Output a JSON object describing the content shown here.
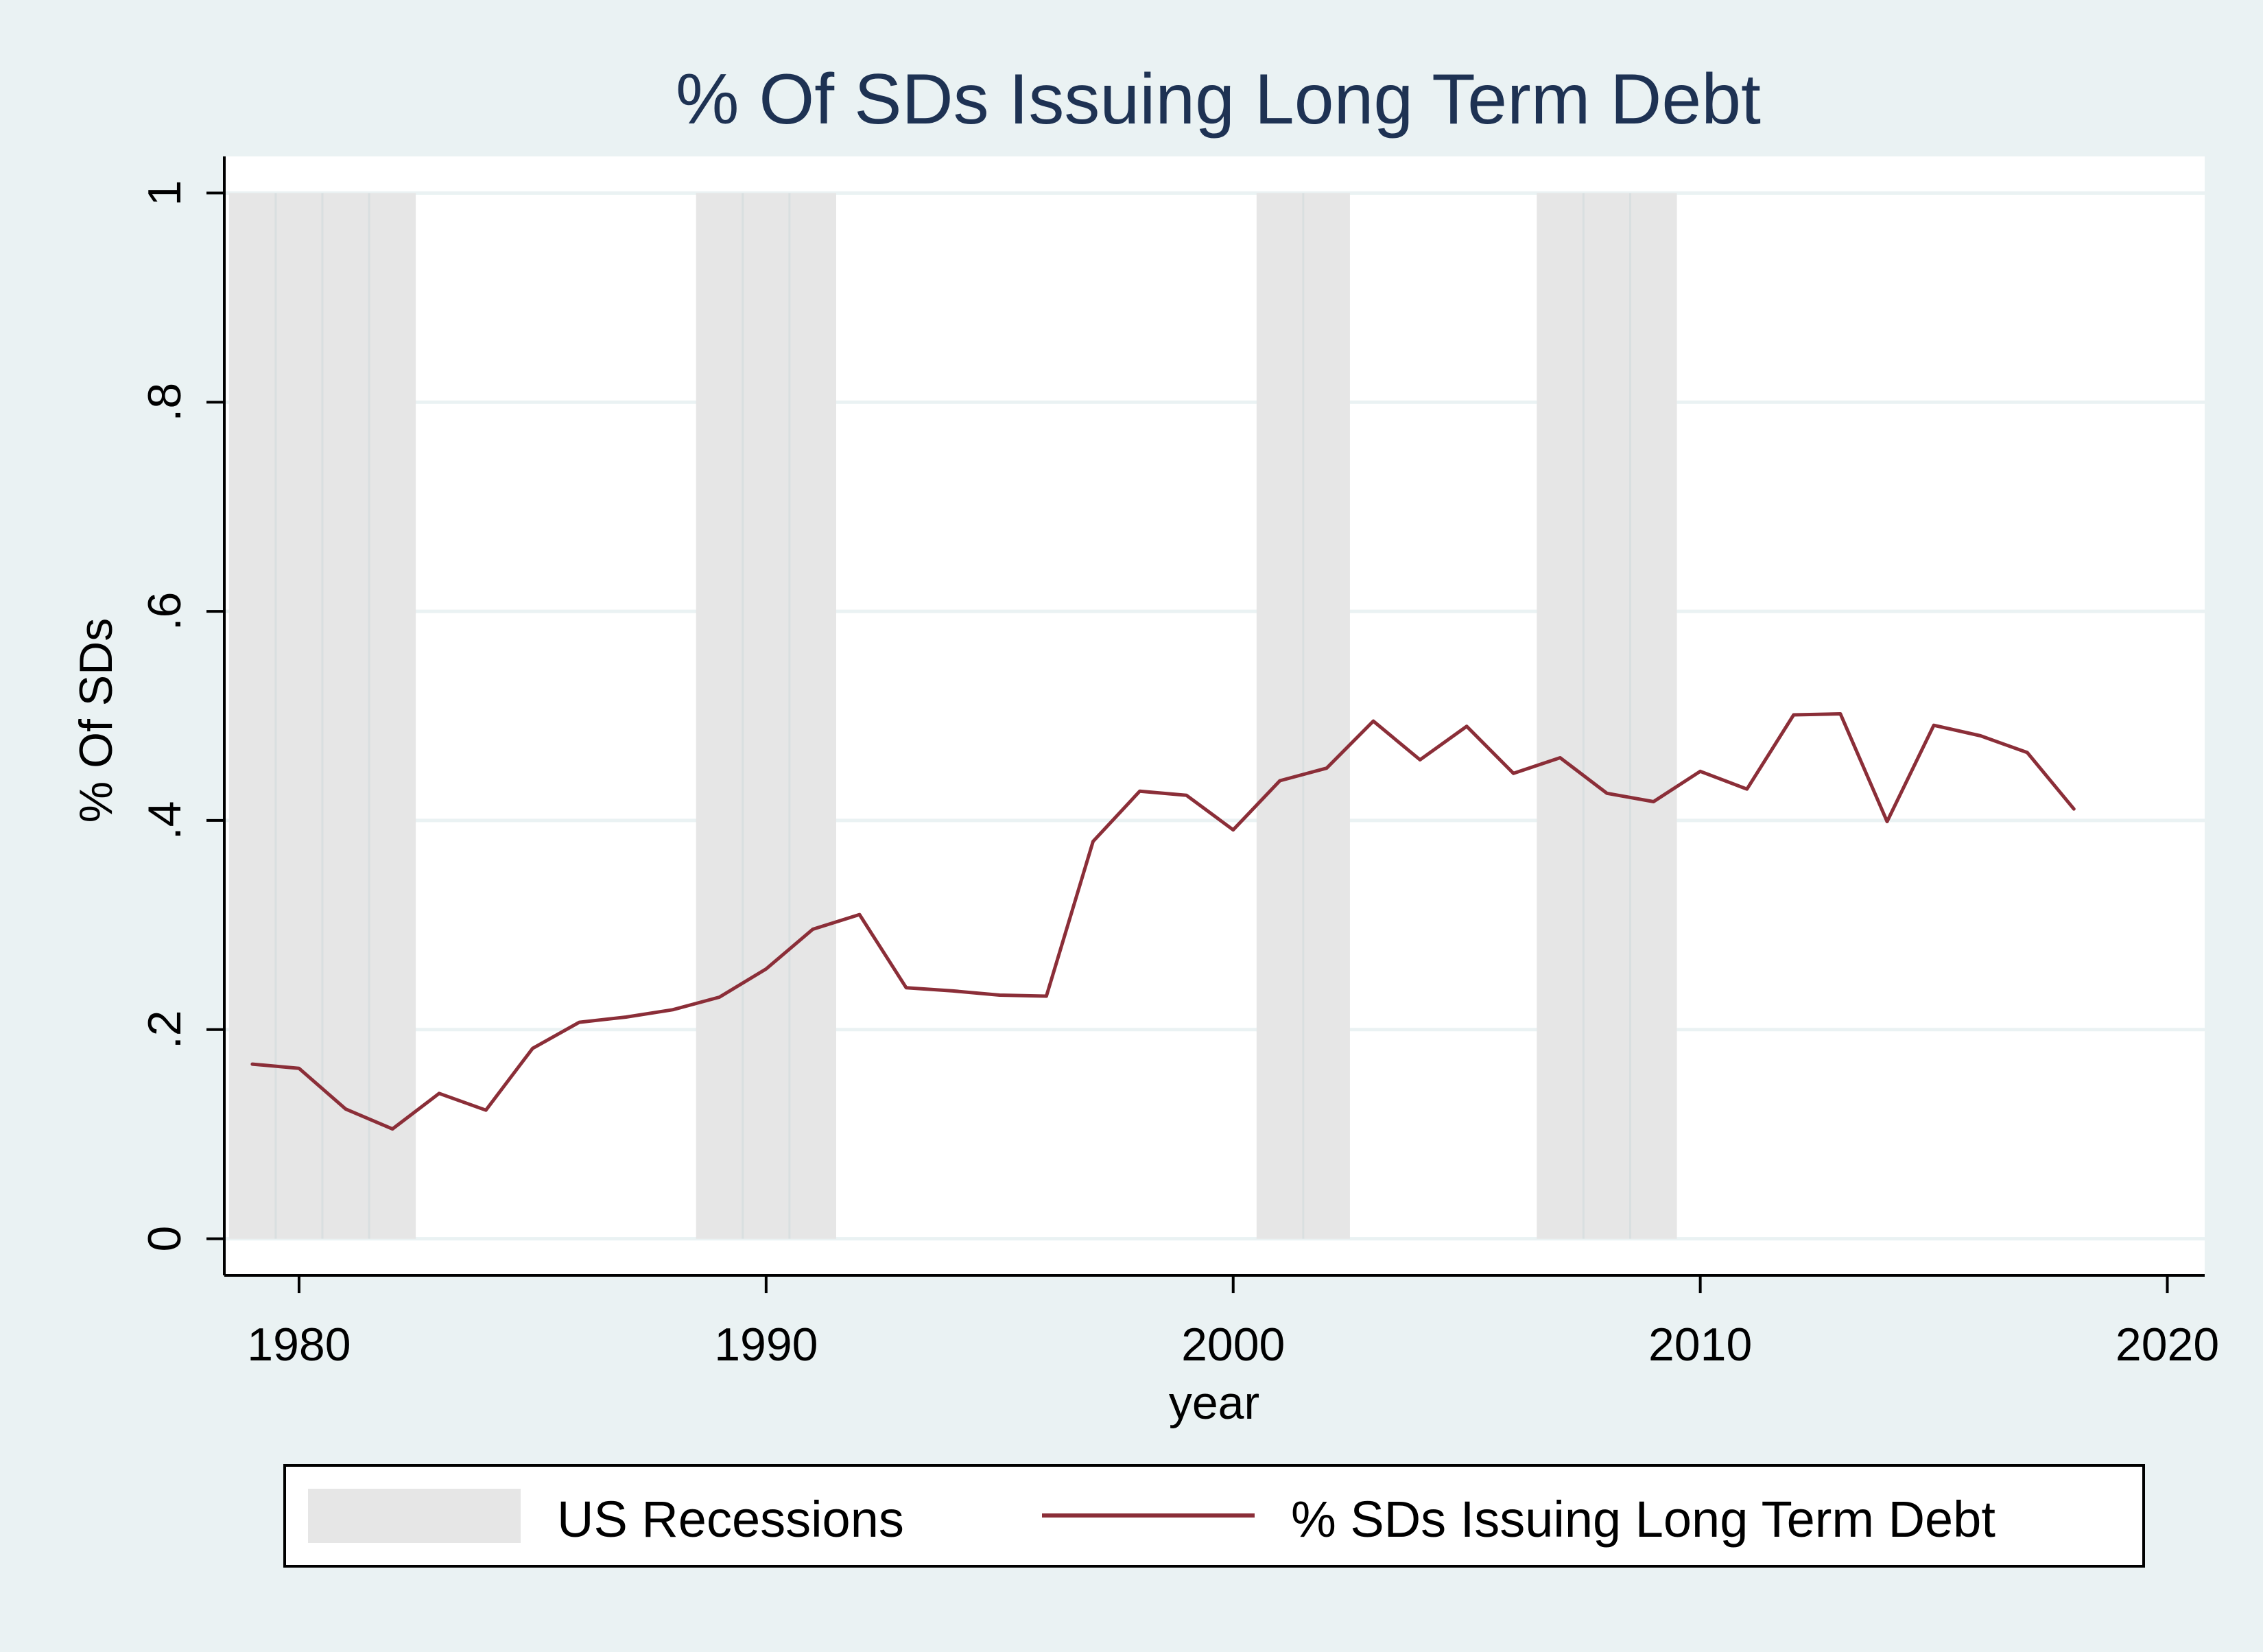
{
  "chart_data": {
    "type": "line",
    "title": "% Of SDs Issuing Long Term Debt",
    "xlabel": "year",
    "ylabel": "% Of SDs",
    "xlim": [
      1978.4,
      2020.8
    ],
    "ylim": [
      -0.035,
      1.035
    ],
    "x_ticks": [
      1980,
      1990,
      2000,
      2010,
      2020
    ],
    "x_tick_labels": [
      "1980",
      "1990",
      "2000",
      "2010",
      "2020"
    ],
    "y_ticks": [
      0,
      0.2,
      0.4,
      0.6,
      0.8,
      1
    ],
    "y_tick_labels": [
      "0",
      ".2",
      ".4",
      ".6",
      ".8",
      "1"
    ],
    "grid": "horizontal",
    "legend_position": "bottom",
    "legend": [
      {
        "label": "US Recessions",
        "kind": "bar",
        "color": "#e6e6e6"
      },
      {
        "label": "% SDs Issuing Long Term Debt",
        "kind": "line",
        "color": "#8b2e38"
      }
    ],
    "recession_band": {
      "name": "US Recessions",
      "value": 1,
      "color": "#e6e6e6",
      "divider_color": "#d9dfe0"
    },
    "recessions": [
      {
        "years": [
          1979,
          1980,
          1981,
          1982
        ]
      },
      {
        "years": [
          1989,
          1990,
          1991
        ]
      },
      {
        "years": [
          2001,
          2002
        ]
      },
      {
        "years": [
          2007,
          2008,
          2009
        ]
      }
    ],
    "series": [
      {
        "name": "% SDs Issuing Long Term Debt",
        "color": "#8b2e38",
        "x": [
          1979,
          1980,
          1981,
          1982,
          1983,
          1984,
          1985,
          1986,
          1987,
          1988,
          1989,
          1990,
          1991,
          1992,
          1993,
          1994,
          1995,
          1996,
          1997,
          1998,
          1999,
          2000,
          2001,
          2002,
          2003,
          2004,
          2005,
          2006,
          2007,
          2008,
          2009,
          2010,
          2011,
          2012,
          2013,
          2014,
          2015,
          2016,
          2017,
          2018
        ],
        "y": [
          0.167,
          0.163,
          0.124,
          0.105,
          0.139,
          0.123,
          0.182,
          0.207,
          0.212,
          0.219,
          0.231,
          0.258,
          0.296,
          0.31,
          0.24,
          0.237,
          0.233,
          0.232,
          0.38,
          0.428,
          0.424,
          0.391,
          0.438,
          0.45,
          0.495,
          0.458,
          0.49,
          0.445,
          0.46,
          0.426,
          0.418,
          0.447,
          0.43,
          0.501,
          0.502,
          0.399,
          0.491,
          0.481,
          0.465,
          0.411
        ]
      }
    ]
  }
}
